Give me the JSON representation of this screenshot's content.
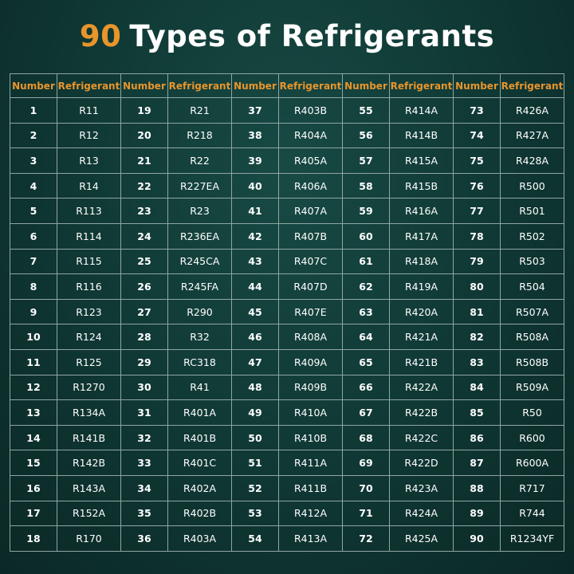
{
  "title": {
    "number": "90",
    "text": "Types of Refrigerants"
  },
  "table": {
    "headers": [
      "Number",
      "Refrigerant",
      "Number",
      "Refrigerant",
      "Number",
      "Refrigerant",
      "Number",
      "Refrigerant",
      "Number",
      "Refrigerant"
    ],
    "rows": [
      [
        1,
        "R11",
        19,
        "R21",
        37,
        "R403B",
        55,
        "R414A",
        73,
        "R426A"
      ],
      [
        2,
        "R12",
        20,
        "R218",
        38,
        "R404A",
        56,
        "R414B",
        74,
        "R427A"
      ],
      [
        3,
        "R13",
        21,
        "R22",
        39,
        "R405A",
        57,
        "R415A",
        75,
        "R428A"
      ],
      [
        4,
        "R14",
        22,
        "R227EA",
        40,
        "R406A",
        58,
        "R415B",
        76,
        "R500"
      ],
      [
        5,
        "R113",
        23,
        "R23",
        41,
        "R407A",
        59,
        "R416A",
        77,
        "R501"
      ],
      [
        6,
        "R114",
        24,
        "R236EA",
        42,
        "R407B",
        60,
        "R417A",
        78,
        "R502"
      ],
      [
        7,
        "R115",
        25,
        "R245CA",
        43,
        "R407C",
        61,
        "R418A",
        79,
        "R503"
      ],
      [
        8,
        "R116",
        26,
        "R245FA",
        44,
        "R407D",
        62,
        "R419A",
        80,
        "R504"
      ],
      [
        9,
        "R123",
        27,
        "R290",
        45,
        "R407E",
        63,
        "R420A",
        81,
        "R507A"
      ],
      [
        10,
        "R124",
        28,
        "R32",
        46,
        "R408A",
        64,
        "R421A",
        82,
        "R508A"
      ],
      [
        11,
        "R125",
        29,
        "RC318",
        47,
        "R409A",
        65,
        "R421B",
        83,
        "R508B"
      ],
      [
        12,
        "R1270",
        30,
        "R41",
        48,
        "R409B",
        66,
        "R422A",
        84,
        "R509A"
      ],
      [
        13,
        "R134A",
        31,
        "R401A",
        49,
        "R410A",
        67,
        "R422B",
        85,
        "R50"
      ],
      [
        14,
        "R141B",
        32,
        "R401B",
        50,
        "R410B",
        68,
        "R422C",
        86,
        "R600"
      ],
      [
        15,
        "R142B",
        33,
        "R401C",
        51,
        "R411A",
        69,
        "R422D",
        87,
        "R600A"
      ],
      [
        16,
        "R143A",
        34,
        "R402A",
        52,
        "R411B",
        70,
        "R423A",
        88,
        "R717"
      ],
      [
        17,
        "R152A",
        35,
        "R402B",
        53,
        "R412A",
        71,
        "R424A",
        89,
        "R744"
      ],
      [
        18,
        "R170",
        36,
        "R403A",
        54,
        "R413A",
        72,
        "R425A",
        90,
        "R1234YF"
      ]
    ]
  }
}
